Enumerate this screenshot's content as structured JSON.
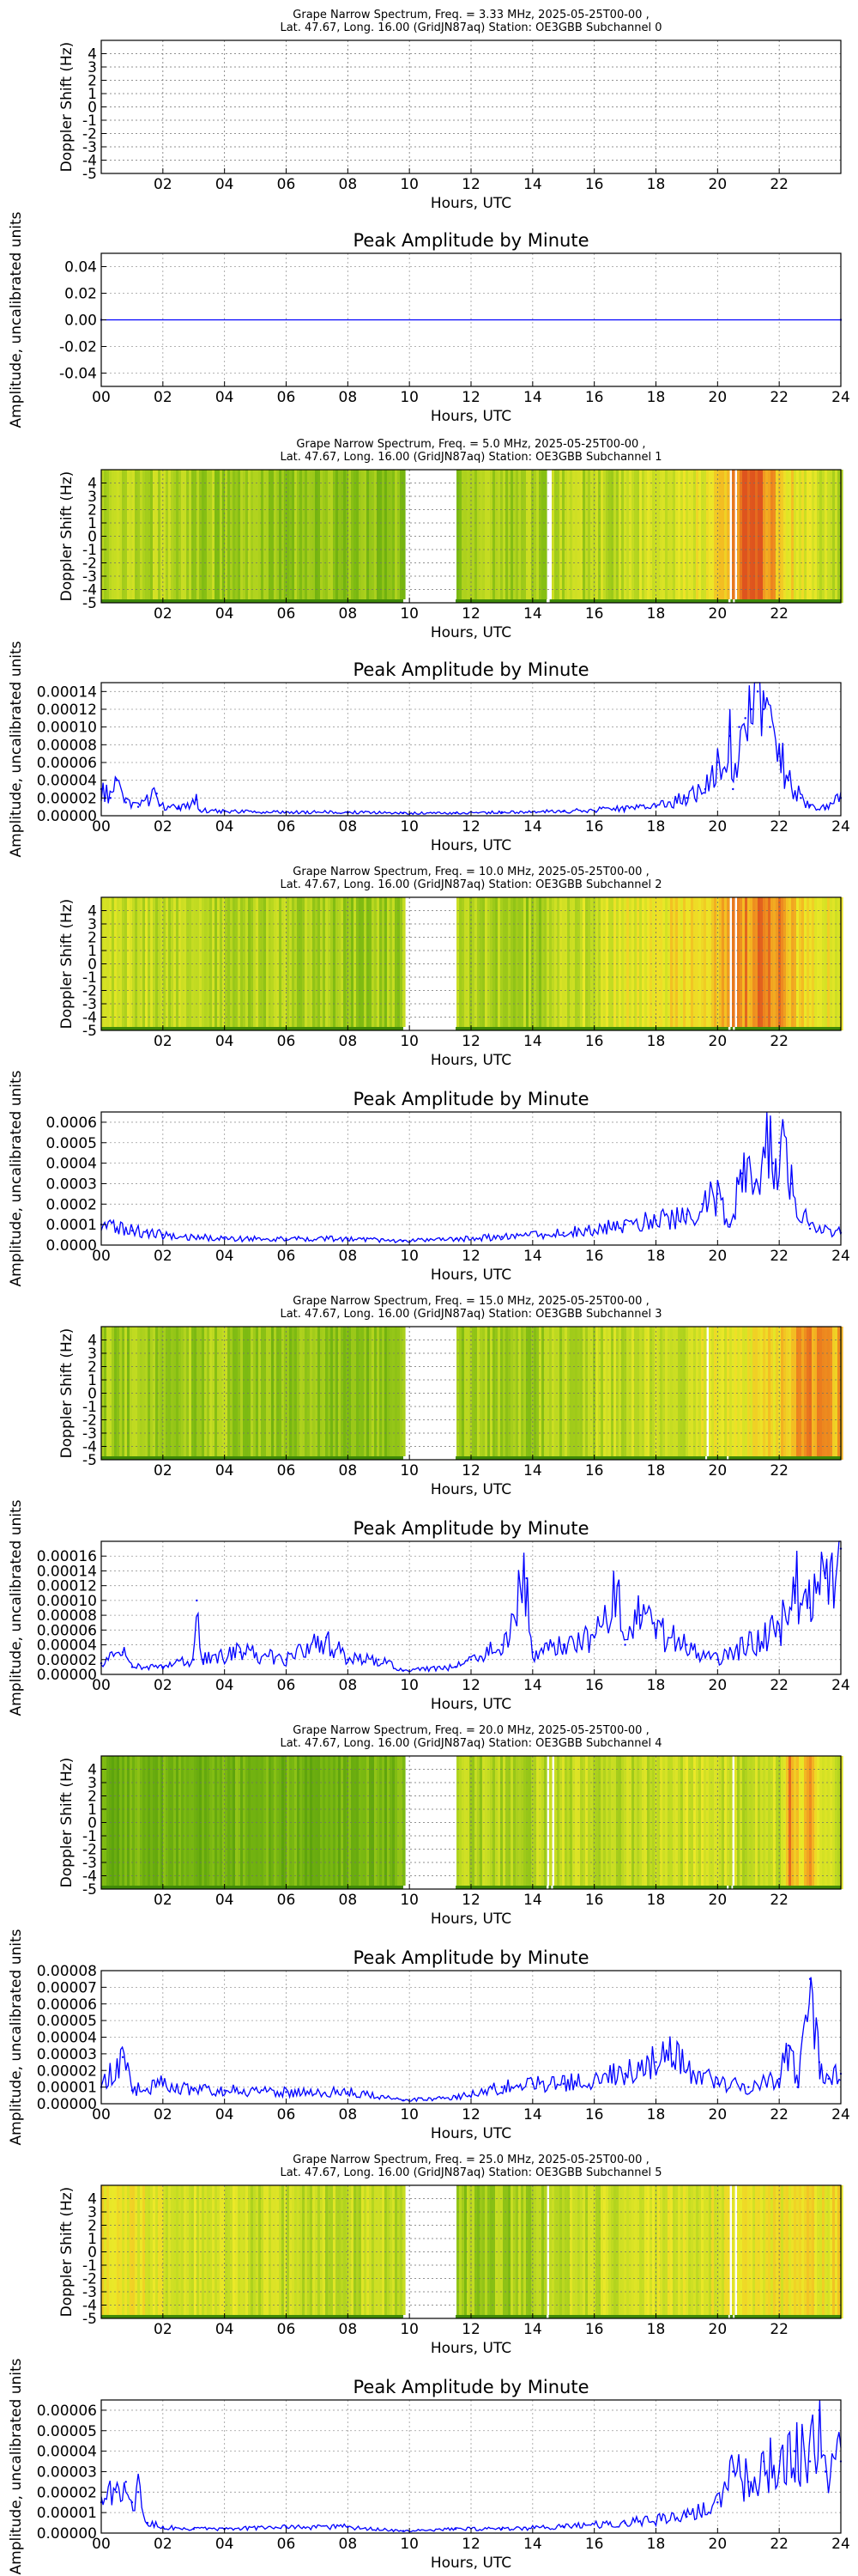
{
  "chart_data": [
    {
      "type": "heatmap",
      "title_line1": "Grape Narrow Spectrum, Freq. = 3.33 MHz, 2025-05-25T00-00 ,",
      "title_line2": "Lat.  47.67, Long.  16.00 (GridJN87aq) Station: OE3GBB Subchannel 0",
      "xlabel": "Hours, UTC",
      "ylabel": "Doppler Shift (Hz)",
      "xlim": [
        0,
        24
      ],
      "ylim": [
        -5,
        5
      ],
      "xticks": [
        "02",
        "04",
        "06",
        "08",
        "10",
        "12",
        "14",
        "16",
        "18",
        "20",
        "22"
      ],
      "yticks": [
        "4",
        "3",
        "2",
        "1",
        "0",
        "-1",
        "-2",
        "-3",
        "-4",
        "-5"
      ],
      "grid": true,
      "empty": true
    },
    {
      "type": "line",
      "title": "Peak Amplitude by Minute",
      "xlabel": "Hours, UTC",
      "ylabel": "Amplitude, uncalibrated units",
      "xlim": [
        0,
        24
      ],
      "ylim": [
        -0.05,
        0.05
      ],
      "xticks": [
        "00",
        "02",
        "04",
        "06",
        "08",
        "10",
        "12",
        "14",
        "16",
        "18",
        "20",
        "22",
        "24"
      ],
      "yticks": [
        "0.04",
        "0.02",
        "0.00",
        "-0.02",
        "-0.04"
      ],
      "grid": true,
      "line_color": "#0000ff",
      "x": [
        0,
        24
      ],
      "y": [
        0,
        0
      ]
    },
    {
      "type": "heatmap",
      "title_line1": "Grape Narrow Spectrum, Freq. = 5.0 MHz, 2025-05-25T00-00 ,",
      "title_line2": "Lat.  47.67, Long.  16.00 (GridJN87aq) Station: OE3GBB Subchannel 1",
      "xlabel": "Hours, UTC",
      "ylabel": "Doppler Shift (Hz)",
      "xlim": [
        0,
        24
      ],
      "ylim": [
        -5,
        5
      ],
      "xticks": [
        "02",
        "04",
        "06",
        "08",
        "10",
        "12",
        "14",
        "16",
        "18",
        "20",
        "22"
      ],
      "yticks": [
        "4",
        "3",
        "2",
        "1",
        "0",
        "-1",
        "-2",
        "-3",
        "-4",
        "-5"
      ],
      "grid": true,
      "gaps": [
        [
          9.8,
          11.5
        ],
        [
          14.45,
          14.55
        ],
        [
          20.35,
          20.42
        ],
        [
          20.5,
          20.56
        ]
      ],
      "intensity_x": [
        0,
        2,
        4,
        6,
        8,
        9.8,
        11.5,
        13,
        15,
        17,
        19,
        20,
        20.6,
        21.3,
        22,
        23,
        24
      ],
      "intensity": [
        0.45,
        0.4,
        0.35,
        0.32,
        0.3,
        0.3,
        0.35,
        0.35,
        0.4,
        0.45,
        0.55,
        0.65,
        0.9,
        0.95,
        0.7,
        0.5,
        0.45
      ]
    },
    {
      "type": "line",
      "title": "Peak Amplitude by Minute",
      "xlabel": "Hours, UTC",
      "ylabel": "Amplitude, uncalibrated units",
      "xlim": [
        0,
        24
      ],
      "ylim": [
        0,
        0.00015
      ],
      "xticks": [
        "00",
        "02",
        "04",
        "06",
        "08",
        "10",
        "12",
        "14",
        "16",
        "18",
        "20",
        "22",
        "24"
      ],
      "yticks": [
        "0.00014",
        "0.00012",
        "0.00010",
        "0.00008",
        "0.00006",
        "0.00004",
        "0.00002",
        "0.00000"
      ],
      "grid": true,
      "line_color": "#0000ff",
      "x": [
        0,
        0.3,
        0.5,
        0.8,
        1.2,
        1.8,
        1.9,
        2.5,
        3.1,
        3.2,
        4,
        6,
        8,
        9.8,
        11.5,
        13,
        15,
        17,
        18,
        19,
        19.6,
        20,
        20.4,
        20.5,
        20.7,
        20.9,
        21.1,
        21.3,
        21.5,
        21.7,
        22,
        22.3,
        22.7,
        23,
        23.5,
        24
      ],
      "y": [
        3e-05,
        2e-05,
        4e-05,
        1.5e-05,
        1e-05,
        2.5e-05,
        1.2e-05,
        8e-06,
        1.8e-05,
        6e-06,
        5e-06,
        4e-06,
        4e-06,
        3e-06,
        3e-06,
        4e-06,
        5e-06,
        8e-06,
        1e-05,
        2e-05,
        3e-05,
        6e-05,
        9e-05,
        3e-05,
        0.0001,
        0.00011,
        0.00012,
        0.00014,
        0.00012,
        0.0001,
        7e-05,
        4e-05,
        2e-05,
        1.2e-05,
        8e-06,
        2e-05
      ]
    },
    {
      "type": "heatmap",
      "title_line1": "Grape Narrow Spectrum, Freq. = 10.0 MHz, 2025-05-25T00-00 ,",
      "title_line2": "Lat.  47.67, Long.  16.00 (GridJN87aq) Station: OE3GBB Subchannel 2",
      "xlabel": "Hours, UTC",
      "ylabel": "Doppler Shift (Hz)",
      "xlim": [
        0,
        24
      ],
      "ylim": [
        -5,
        5
      ],
      "xticks": [
        "02",
        "04",
        "06",
        "08",
        "10",
        "12",
        "14",
        "16",
        "18",
        "20",
        "22"
      ],
      "yticks": [
        "4",
        "3",
        "2",
        "1",
        "0",
        "-1",
        "-2",
        "-3",
        "-4",
        "-5"
      ],
      "grid": true,
      "gaps": [
        [
          9.8,
          11.5
        ],
        [
          20.35,
          20.42
        ],
        [
          20.5,
          20.56
        ]
      ],
      "intensity_x": [
        0,
        2,
        4,
        6,
        8,
        9.8,
        11.5,
        13,
        14,
        15,
        17,
        19,
        20,
        21,
        21.7,
        22.5,
        24
      ],
      "intensity": [
        0.5,
        0.45,
        0.4,
        0.4,
        0.35,
        0.35,
        0.4,
        0.4,
        0.35,
        0.45,
        0.55,
        0.65,
        0.75,
        0.85,
        0.9,
        0.7,
        0.55
      ]
    },
    {
      "type": "line",
      "title": "Peak Amplitude by Minute",
      "xlabel": "Hours, UTC",
      "ylabel": "Amplitude, uncalibrated units",
      "xlim": [
        0,
        24
      ],
      "ylim": [
        0,
        0.00065
      ],
      "xticks": [
        "00",
        "02",
        "04",
        "06",
        "08",
        "10",
        "12",
        "14",
        "16",
        "18",
        "20",
        "22",
        "24"
      ],
      "yticks": [
        "0.0006",
        "0.0005",
        "0.0004",
        "0.0003",
        "0.0002",
        "0.0001",
        "0.0000"
      ],
      "grid": true,
      "line_color": "#0000ff",
      "x": [
        0,
        0.5,
        1,
        1.5,
        2,
        3,
        4,
        6,
        8,
        9.8,
        11.5,
        13,
        15,
        17,
        18,
        19,
        19.5,
        20,
        20.4,
        20.8,
        21.2,
        21.6,
        21.8,
        22,
        22.4,
        23,
        24
      ],
      "y": [
        0.0001,
        8e-05,
        7e-05,
        6e-05,
        5e-05,
        4e-05,
        3e-05,
        3e-05,
        3e-05,
        2e-05,
        3e-05,
        4e-05,
        6e-05,
        0.0001,
        0.00012,
        0.00015,
        0.0002,
        0.00025,
        0.0001,
        0.00035,
        0.0003,
        0.0006,
        0.0004,
        0.0005,
        0.0003,
        8e-05,
        6e-05
      ]
    },
    {
      "type": "heatmap",
      "title_line1": "Grape Narrow Spectrum, Freq. = 15.0 MHz, 2025-05-25T00-00 ,",
      "title_line2": "Lat.  47.67, Long.  16.00 (GridJN87aq) Station: OE3GBB Subchannel 3",
      "xlabel": "Hours, UTC",
      "ylabel": "Doppler Shift (Hz)",
      "xlim": [
        0,
        24
      ],
      "ylim": [
        -5,
        5
      ],
      "xticks": [
        "02",
        "04",
        "06",
        "08",
        "10",
        "12",
        "14",
        "16",
        "18",
        "20",
        "22"
      ],
      "yticks": [
        "4",
        "3",
        "2",
        "1",
        "0",
        "-1",
        "-2",
        "-3",
        "-4",
        "-5"
      ],
      "grid": true,
      "gaps": [
        [
          9.8,
          11.5
        ],
        [
          19.6,
          19.66
        ],
        [
          20.3,
          20.36
        ]
      ],
      "intensity_x": [
        0,
        2,
        4,
        6,
        8,
        9.8,
        11.5,
        13,
        15,
        17,
        19,
        20,
        21,
        22,
        22.5,
        23,
        24
      ],
      "intensity": [
        0.35,
        0.35,
        0.35,
        0.3,
        0.3,
        0.3,
        0.35,
        0.35,
        0.4,
        0.45,
        0.5,
        0.55,
        0.6,
        0.65,
        0.8,
        0.85,
        0.75
      ]
    },
    {
      "type": "line",
      "title": "Peak Amplitude by Minute",
      "xlabel": "Hours, UTC",
      "ylabel": "Amplitude, uncalibrated units",
      "xlim": [
        0,
        24
      ],
      "ylim": [
        0,
        0.00018
      ],
      "xticks": [
        "00",
        "02",
        "04",
        "06",
        "08",
        "10",
        "12",
        "14",
        "16",
        "18",
        "20",
        "22",
        "24"
      ],
      "yticks": [
        "0.00016",
        "0.00014",
        "0.00012",
        "0.00010",
        "0.00008",
        "0.00006",
        "0.00004",
        "0.00002",
        "0.00000"
      ],
      "grid": true,
      "line_color": "#0000ff",
      "x": [
        0,
        0.7,
        1,
        2,
        3,
        3.1,
        3.3,
        4.5,
        6,
        7.3,
        8,
        9,
        9.8,
        11.5,
        12,
        13,
        13.8,
        14,
        15,
        16,
        16.8,
        17,
        17.5,
        18,
        19,
        20,
        21,
        22,
        22.5,
        23,
        23.5,
        24
      ],
      "y": [
        1.5e-05,
        3e-05,
        1e-05,
        1e-05,
        2e-05,
        0.0001,
        2e-05,
        3e-05,
        2e-05,
        5e-05,
        2e-05,
        2e-05,
        5e-06,
        1e-05,
        2e-05,
        4e-05,
        0.00013,
        3e-05,
        4e-05,
        5e-05,
        0.00012,
        4e-05,
        8e-05,
        6e-05,
        4e-05,
        2e-05,
        4e-05,
        6e-05,
        0.00012,
        9e-05,
        0.00013,
        0.00017
      ]
    },
    {
      "type": "heatmap",
      "title_line1": "Grape Narrow Spectrum, Freq. = 20.0 MHz, 2025-05-25T00-00 ,",
      "title_line2": "Lat.  47.67, Long.  16.00 (GridJN87aq) Station: OE3GBB Subchannel 4",
      "xlabel": "Hours, UTC",
      "ylabel": "Doppler Shift (Hz)",
      "xlim": [
        0,
        24
      ],
      "ylim": [
        -5,
        5
      ],
      "xticks": [
        "02",
        "04",
        "06",
        "08",
        "10",
        "12",
        "14",
        "16",
        "18",
        "20",
        "22"
      ],
      "yticks": [
        "4",
        "3",
        "2",
        "1",
        "0",
        "-1",
        "-2",
        "-3",
        "-4",
        "-5"
      ],
      "grid": true,
      "gaps": [
        [
          9.8,
          11.5
        ],
        [
          14.45,
          14.52
        ],
        [
          14.6,
          14.66
        ],
        [
          20.3,
          20.36
        ],
        [
          20.45,
          20.5
        ]
      ],
      "intensity_x": [
        0,
        2,
        4,
        6,
        8,
        9.8,
        11.5,
        13,
        15,
        17,
        19,
        20,
        21,
        22,
        22.3,
        22.6,
        23,
        23.4,
        24
      ],
      "intensity": [
        0.2,
        0.2,
        0.2,
        0.2,
        0.2,
        0.2,
        0.4,
        0.4,
        0.45,
        0.45,
        0.5,
        0.5,
        0.45,
        0.5,
        0.85,
        0.6,
        0.85,
        0.55,
        0.5
      ]
    },
    {
      "type": "line",
      "title": "Peak Amplitude by Minute",
      "xlabel": "Hours, UTC",
      "ylabel": "Amplitude, uncalibrated units",
      "xlim": [
        0,
        24
      ],
      "ylim": [
        0,
        8e-05
      ],
      "xticks": [
        "00",
        "02",
        "04",
        "06",
        "08",
        "10",
        "12",
        "14",
        "16",
        "18",
        "20",
        "22",
        "24"
      ],
      "yticks": [
        "0.00008",
        "0.00007",
        "0.00006",
        "0.00005",
        "0.00004",
        "0.00003",
        "0.00002",
        "0.00001",
        "0.00000"
      ],
      "grid": true,
      "line_color": "#0000ff",
      "x": [
        0,
        0.7,
        1,
        2,
        3,
        4,
        6,
        8,
        9.8,
        11.5,
        13,
        14,
        15,
        17,
        18,
        18.5,
        19,
        20,
        21,
        22,
        22.3,
        22.6,
        23,
        23.3,
        23.6,
        24
      ],
      "y": [
        1e-05,
        2.8e-05,
        8e-06,
        1.2e-05,
        8e-06,
        8e-06,
        7e-06,
        7e-06,
        2e-06,
        4e-06,
        1e-05,
        1.2e-05,
        1.2e-05,
        1.8e-05,
        2.5e-05,
        3e-05,
        2e-05,
        1.2e-05,
        1e-05,
        1.5e-05,
        3.5e-05,
        1e-05,
        7.5e-05,
        2.5e-05,
        1.5e-05,
        1.8e-05
      ]
    },
    {
      "type": "heatmap",
      "title_line1": "Grape Narrow Spectrum, Freq. = 25.0 MHz, 2025-05-25T00-00 ,",
      "title_line2": "Lat.  47.67, Long.  16.00 (GridJN87aq) Station: OE3GBB Subchannel 5",
      "xlabel": "Hours, UTC",
      "ylabel": "Doppler Shift (Hz)",
      "xlim": [
        0,
        24
      ],
      "ylim": [
        -5,
        5
      ],
      "xticks": [
        "02",
        "04",
        "06",
        "08",
        "10",
        "12",
        "14",
        "16",
        "18",
        "20",
        "22"
      ],
      "yticks": [
        "4",
        "3",
        "2",
        "1",
        "0",
        "-1",
        "-2",
        "-3",
        "-4",
        "-5"
      ],
      "grid": true,
      "gaps": [
        [
          9.8,
          11.5
        ],
        [
          14.45,
          14.52
        ],
        [
          20.35,
          20.4
        ],
        [
          20.5,
          20.55
        ]
      ],
      "intensity_x": [
        0,
        2,
        4,
        6,
        8,
        9.8,
        11.5,
        13,
        15,
        17,
        19,
        20,
        21,
        22,
        23,
        24
      ],
      "intensity": [
        0.6,
        0.55,
        0.5,
        0.45,
        0.45,
        0.45,
        0.35,
        0.35,
        0.45,
        0.5,
        0.55,
        0.55,
        0.6,
        0.6,
        0.65,
        0.6
      ]
    },
    {
      "type": "line",
      "title": "Peak Amplitude by Minute",
      "xlabel": "Hours, UTC",
      "ylabel": "Amplitude, uncalibrated units",
      "xlim": [
        0,
        24
      ],
      "ylim": [
        0,
        6.5e-05
      ],
      "xticks": [
        "00",
        "02",
        "04",
        "06",
        "08",
        "10",
        "12",
        "14",
        "16",
        "18",
        "20",
        "22",
        "24"
      ],
      "yticks": [
        "0.00006",
        "0.00005",
        "0.00004",
        "0.00003",
        "0.00002",
        "0.00001",
        "0.00000"
      ],
      "grid": true,
      "line_color": "#0000ff",
      "x": [
        0,
        0.5,
        0.8,
        1,
        1.2,
        1.5,
        2,
        3,
        4,
        6,
        8,
        9.8,
        11.5,
        13,
        15,
        17,
        19,
        20,
        20.5,
        21,
        21.5,
        22,
        22.5,
        23,
        23.3,
        23.5,
        24
      ],
      "y": [
        1.5e-05,
        2e-05,
        2.5e-05,
        1.5e-05,
        2e-05,
        5e-06,
        3e-06,
        2e-06,
        2e-06,
        3e-06,
        3e-06,
        1e-06,
        2e-06,
        2e-06,
        3e-06,
        5e-06,
        8e-06,
        1.5e-05,
        3e-05,
        2.5e-05,
        3.5e-05,
        3e-05,
        4e-05,
        3.5e-05,
        6e-05,
        3e-05,
        3.5e-05
      ]
    }
  ]
}
